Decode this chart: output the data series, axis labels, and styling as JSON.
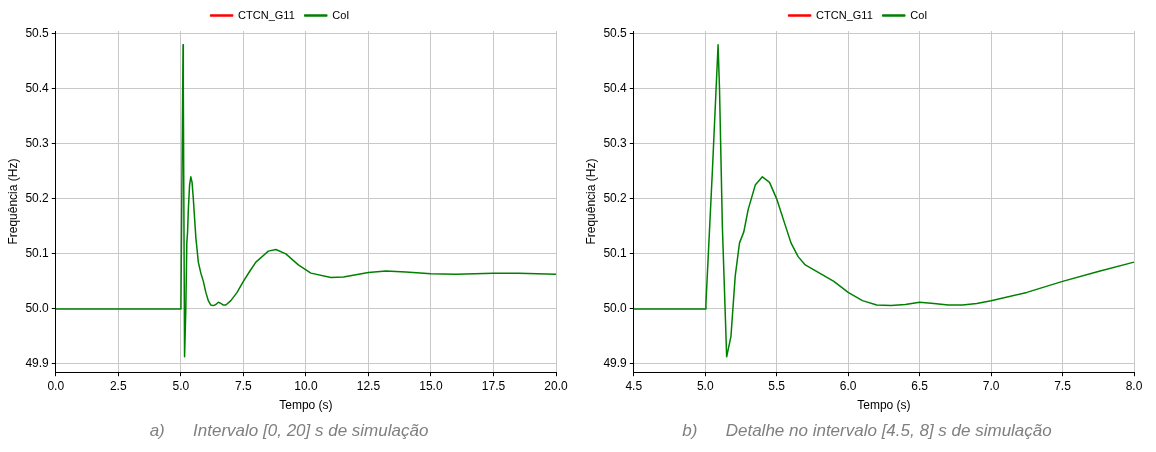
{
  "chart_data": [
    {
      "type": "line",
      "xlabel": "Tempo (s)",
      "ylabel": "Frequência (Hz)",
      "legend": "top",
      "grid": true,
      "annotations": [
        "a)      Intervalo [0, 20] s de simulação"
      ],
      "xlim": [
        0,
        20
      ],
      "ylim": [
        49.885,
        50.505
      ],
      "xticks": [
        {
          "value": 0,
          "label": "0.0"
        },
        {
          "value": 2.5,
          "label": "2.5"
        },
        {
          "value": 5,
          "label": "5.0"
        },
        {
          "value": 7.5,
          "label": "7.5"
        },
        {
          "value": 10,
          "label": "10.0"
        },
        {
          "value": 12.5,
          "label": "12.5"
        },
        {
          "value": 15,
          "label": "15.0"
        },
        {
          "value": 17.5,
          "label": "17.5"
        },
        {
          "value": 20,
          "label": "20.0"
        }
      ],
      "yticks": [
        {
          "value": 49.9,
          "label": "49.9"
        },
        {
          "value": 50,
          "label": "50.0"
        },
        {
          "value": 50.1,
          "label": "50.1"
        },
        {
          "value": 50.2,
          "label": "50.2"
        },
        {
          "value": 50.3,
          "label": "50.3"
        },
        {
          "value": 50.4,
          "label": "50.4"
        },
        {
          "value": 50.5,
          "label": "50.5"
        }
      ],
      "x": [
        0,
        5,
        5.005,
        5.09,
        5.1,
        5.15,
        5.2,
        5.24,
        5.27,
        5.3,
        5.35,
        5.4,
        5.45,
        5.5,
        5.6,
        5.7,
        5.8,
        5.9,
        6,
        6.1,
        6.2,
        6.3,
        6.4,
        6.5,
        6.6,
        6.7,
        6.8,
        7,
        7.25,
        7.5,
        7.75,
        8,
        8.5,
        8.8,
        9.2,
        9.7,
        10.2,
        11,
        11.5,
        12.5,
        13.2,
        14,
        15,
        16,
        17.5,
        18.5,
        20
      ],
      "series": [
        {
          "name": "CTCN_G11",
          "color": "#ff0000",
          "values": [
            null,
            null,
            null,
            null,
            null,
            null,
            null,
            null,
            null,
            null,
            null,
            null,
            null,
            null,
            null,
            null,
            null,
            null,
            null,
            null,
            null,
            null,
            null,
            null,
            null,
            null,
            null,
            null,
            null,
            null,
            null,
            null,
            null,
            null,
            null,
            null,
            null,
            null,
            null,
            null,
            null,
            null,
            null,
            null,
            null,
            null,
            null
          ]
        },
        {
          "name": "CoI",
          "color": "#008000",
          "values": [
            50,
            50,
            50.01,
            50.48,
            50.4,
            49.913,
            50,
            50.12,
            50.14,
            50.18,
            50.225,
            50.24,
            50.23,
            50.2,
            50.13,
            50.085,
            50.065,
            50.05,
            50.03,
            50.015,
            50.007,
            50.006,
            50.008,
            50.012,
            50.01,
            50.007,
            50.007,
            50.015,
            50.03,
            50.05,
            50.068,
            50.085,
            50.105,
            50.108,
            50.1,
            50.08,
            50.065,
            50.057,
            50.058,
            50.066,
            50.069,
            50.067,
            50.064,
            50.063,
            50.065,
            50.065,
            50.063
          ]
        }
      ]
    },
    {
      "type": "line",
      "xlabel": "Tempo (s)",
      "ylabel": "Frequência (Hz)",
      "legend": "top",
      "grid": true,
      "annotations": [
        "b)      Detalhe no intervalo [4.5, 8] s de simulação"
      ],
      "xlim": [
        4.5,
        8
      ],
      "ylim": [
        49.885,
        50.505
      ],
      "xticks": [
        {
          "value": 4.5,
          "label": "4.5"
        },
        {
          "value": 5,
          "label": "5.0"
        },
        {
          "value": 5.5,
          "label": "5.5"
        },
        {
          "value": 6,
          "label": "6.0"
        },
        {
          "value": 6.5,
          "label": "6.5"
        },
        {
          "value": 7,
          "label": "7.0"
        },
        {
          "value": 7.5,
          "label": "7.5"
        },
        {
          "value": 8,
          "label": "8.0"
        }
      ],
      "yticks": [
        {
          "value": 49.9,
          "label": "49.9"
        },
        {
          "value": 50,
          "label": "50.0"
        },
        {
          "value": 50.1,
          "label": "50.1"
        },
        {
          "value": 50.2,
          "label": "50.2"
        },
        {
          "value": 50.3,
          "label": "50.3"
        },
        {
          "value": 50.4,
          "label": "50.4"
        },
        {
          "value": 50.5,
          "label": "50.5"
        }
      ],
      "x": [
        4.5,
        5,
        5.005,
        5.05,
        5.09,
        5.1,
        5.12,
        5.15,
        5.18,
        5.21,
        5.24,
        5.27,
        5.3,
        5.35,
        5.4,
        5.45,
        5.5,
        5.55,
        5.6,
        5.65,
        5.7,
        5.8,
        5.9,
        6,
        6.1,
        6.2,
        6.3,
        6.4,
        6.5,
        6.6,
        6.7,
        6.8,
        6.9,
        7,
        7.25,
        7.5,
        7.75,
        8
      ],
      "series": [
        {
          "name": "CTCN_G11",
          "color": "#ff0000",
          "values": [
            null,
            null,
            null,
            null,
            null,
            null,
            null,
            null,
            null,
            null,
            null,
            null,
            null,
            null,
            null,
            null,
            null,
            null,
            null,
            null,
            null,
            null,
            null,
            null,
            null,
            null,
            null,
            null,
            null,
            null,
            null,
            null,
            null,
            null,
            null,
            null,
            null,
            null
          ]
        },
        {
          "name": "CoI",
          "color": "#008000",
          "values": [
            50,
            50,
            50.01,
            50.25,
            50.48,
            50.4,
            50.15,
            49.913,
            49.95,
            50.06,
            50.12,
            50.14,
            50.18,
            50.225,
            50.24,
            50.23,
            50.2,
            50.16,
            50.12,
            50.095,
            50.08,
            50.065,
            50.05,
            50.03,
            50.015,
            50.007,
            50.006,
            50.008,
            50.012,
            50.01,
            50.007,
            50.007,
            50.01,
            50.015,
            50.03,
            50.05,
            50.068,
            50.085
          ]
        }
      ]
    }
  ]
}
